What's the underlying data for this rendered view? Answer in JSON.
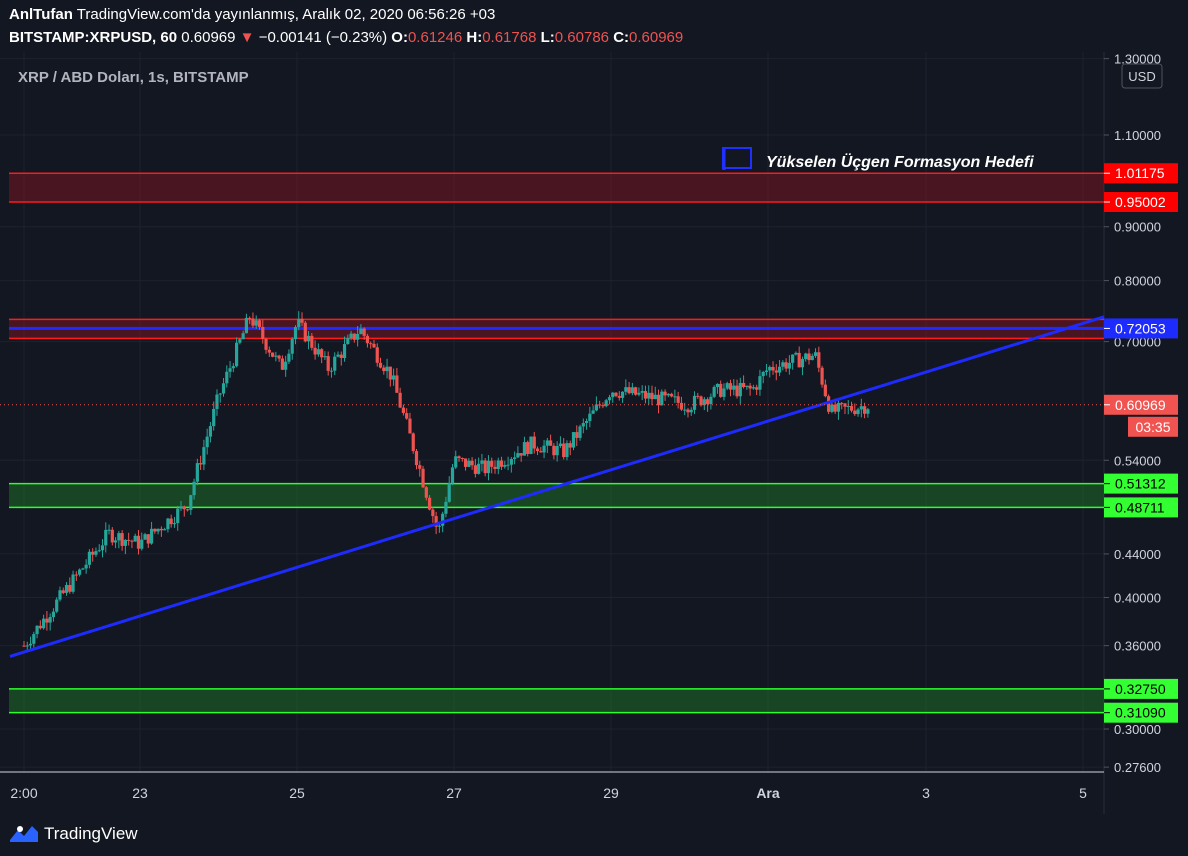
{
  "header": {
    "author": "AnlTufan",
    "published": "TradingView.com'da yayınlanmış, Aralık 02, 2020 06:56:26 +03",
    "symbol": "BITSTAMP:XRPUSD, 60",
    "last": "0.60969",
    "change": "−0.00141 (−0.23%)",
    "o_label": "O:",
    "o_val": "0.61246",
    "h_label": "H:",
    "h_val": "0.61768",
    "l_label": "L:",
    "l_val": "0.60786",
    "c_label": "C:",
    "c_val": "0.60969"
  },
  "colors": {
    "background": "#131722",
    "up": "#26a69a",
    "down": "#ef5350",
    "trendline": "#1e2bff",
    "red_zone": "#ff1a1a",
    "green_zone": "#2bff2b",
    "axis_text": "#d1d4dc"
  },
  "footer": {
    "brand": "TradingView",
    "logo_icon": "tradingview-logo-icon"
  },
  "chart_data": {
    "type": "candlestick",
    "title": "XRP / ABD Doları, 1s, BITSTAMP",
    "currency": "USD",
    "y_scale": "log",
    "x_ticks": [
      "2:00",
      "23",
      "25",
      "27",
      "29",
      "Ara",
      "3",
      "5"
    ],
    "y_ticks": [
      "1.30000",
      "1.10000",
      "0.90000",
      "0.80000",
      "0.70000",
      "0.54000",
      "0.44000",
      "0.40000",
      "0.36000",
      "0.30000",
      "0.27600"
    ],
    "price_labels": [
      {
        "value": "1.01175",
        "color": "red"
      },
      {
        "value": "0.95002",
        "color": "red"
      },
      {
        "value": "0.72053",
        "color": "blue"
      },
      {
        "value": "0.60969",
        "color": "red",
        "countdown": "03:35"
      },
      {
        "value": "0.51312",
        "color": "green"
      },
      {
        "value": "0.48711",
        "color": "green"
      },
      {
        "value": "0.32750",
        "color": "green"
      },
      {
        "value": "0.31090",
        "color": "green"
      }
    ],
    "zones": [
      {
        "color": "red",
        "low": 0.95002,
        "high": 1.01175
      },
      {
        "color": "red",
        "low": 0.705,
        "high": 0.735
      },
      {
        "color": "green",
        "low": 0.48711,
        "high": 0.51312
      },
      {
        "color": "green",
        "low": 0.3109,
        "high": 0.3275
      }
    ],
    "horizontal_lines": [
      {
        "value": 0.72053,
        "color": "blue"
      }
    ],
    "annotation": "Yükselen Üçgen Formasyon Hedefi",
    "trendline": {
      "from": {
        "x": "2:00",
        "y": 0.355
      },
      "to": {
        "x": "Ara+2.3d",
        "y": 0.665
      }
    },
    "last_price": 0.60969,
    "series_outline": [
      {
        "day": "2:00",
        "close": 0.36
      },
      {
        "day": "22.6",
        "close": 0.46
      },
      {
        "day": "23",
        "close": 0.45
      },
      {
        "day": "23.6",
        "close": 0.49
      },
      {
        "day": "24",
        "close": 0.62
      },
      {
        "day": "24.4",
        "close": 0.74
      },
      {
        "day": "24.8",
        "close": 0.66
      },
      {
        "day": "25",
        "close": 0.73
      },
      {
        "day": "25.4",
        "close": 0.66
      },
      {
        "day": "25.8",
        "close": 0.72
      },
      {
        "day": "26.2",
        "close": 0.65
      },
      {
        "day": "26.5",
        "close": 0.55
      },
      {
        "day": "26.8",
        "close": 0.46
      },
      {
        "day": "27",
        "close": 0.54
      },
      {
        "day": "27.4",
        "close": 0.53
      },
      {
        "day": "28",
        "close": 0.56
      },
      {
        "day": "28.4",
        "close": 0.55
      },
      {
        "day": "29",
        "close": 0.63
      },
      {
        "day": "29.5",
        "close": 0.62
      },
      {
        "day": "30",
        "close": 0.61
      },
      {
        "day": "30.4",
        "close": 0.63
      },
      {
        "day": "30.8",
        "close": 0.63
      },
      {
        "day": "Ara",
        "close": 0.66
      },
      {
        "day": "Ara+0.6",
        "close": 0.68
      },
      {
        "day": "Ara+0.8",
        "close": 0.6
      },
      {
        "day": "Ara+1.3",
        "close": 0.6097
      }
    ]
  }
}
